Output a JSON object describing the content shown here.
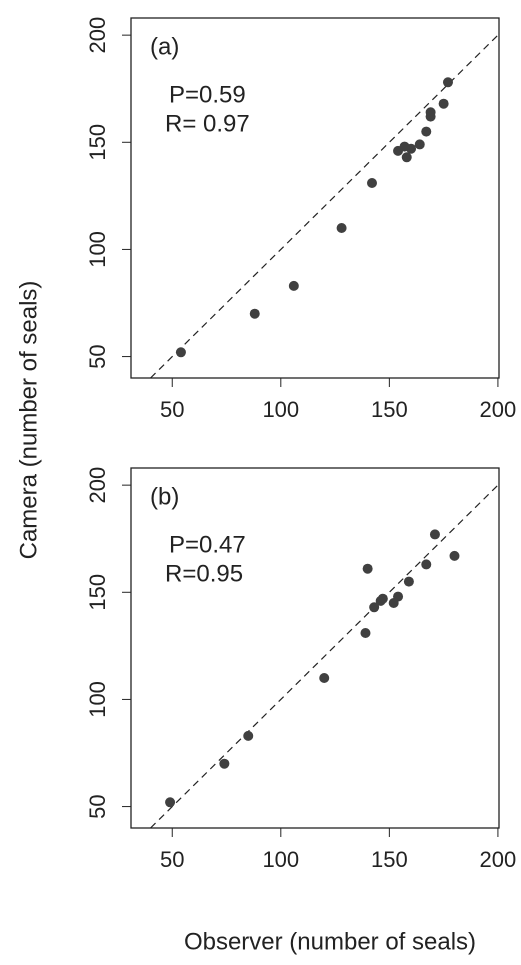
{
  "chart_data": [
    {
      "type": "scatter",
      "panel_label": "(a)",
      "annotations": [
        "P=0.59",
        "R= 0.97"
      ],
      "ylabel": "Camera (number of seals)",
      "x": [
        54,
        88,
        106,
        128,
        142,
        154,
        157,
        158,
        160,
        164,
        167,
        169,
        169,
        175,
        177
      ],
      "values": [
        52,
        70,
        83,
        110,
        131,
        146,
        148,
        143,
        147,
        149,
        155,
        162,
        164,
        168,
        178
      ],
      "color": "#404040",
      "reference_line": "y = x",
      "xlim": [
        31,
        200.5
      ],
      "ylim": [
        40,
        208
      ],
      "xticks": [
        50,
        100,
        150,
        200
      ],
      "yticks": [
        50,
        100,
        150,
        200
      ]
    },
    {
      "type": "scatter",
      "panel_label": "(b)",
      "annotations": [
        "P=0.47",
        "R=0.95"
      ],
      "xlabel": "Observer (number of seals)",
      "x": [
        49,
        74,
        85,
        120,
        139,
        140,
        143,
        146,
        147,
        152,
        154,
        159,
        167,
        171,
        180
      ],
      "values": [
        52,
        70,
        83,
        110,
        131,
        161,
        143,
        146,
        147,
        145,
        148,
        155,
        163,
        177,
        167
      ],
      "color": "#404040",
      "reference_line": "y = x",
      "xlim": [
        31,
        200.5
      ],
      "ylim": [
        40,
        208
      ],
      "xticks": [
        50,
        100,
        150,
        200
      ],
      "yticks": [
        50,
        100,
        150,
        200
      ]
    }
  ]
}
